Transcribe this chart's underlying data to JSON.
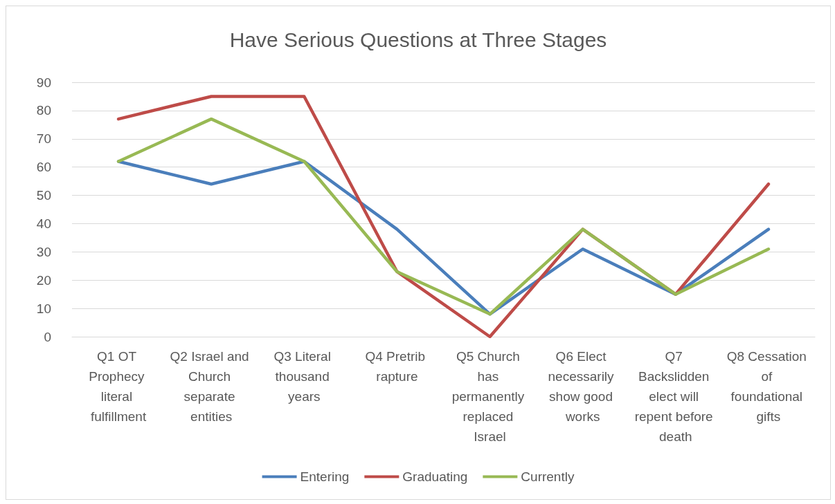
{
  "chart_data": {
    "type": "line",
    "title": "Have Serious Questions at Three Stages",
    "categories": [
      "Q1 OT Prophecy literal fulfillment",
      "Q2 Israel and Church separate entities",
      "Q3 Literal thousand years",
      "Q4 Pretrib rapture",
      "Q5 Church has permanently replaced Israel",
      "Q6 Elect necessarily show good works",
      "Q7 Backslidden elect will repent before death",
      "Q8 Cessation of foundational gifts"
    ],
    "series": [
      {
        "name": "Entering",
        "color": "#4a7ebb",
        "values": [
          62,
          54,
          62,
          38,
          8,
          31,
          15,
          38
        ]
      },
      {
        "name": "Graduating",
        "color": "#be4b48",
        "values": [
          77,
          85,
          85,
          23,
          0,
          38,
          15,
          54
        ]
      },
      {
        "name": "Currently",
        "color": "#98b954",
        "values": [
          62,
          77,
          62,
          23,
          8,
          38,
          15,
          31
        ]
      }
    ],
    "ylim": [
      0,
      90
    ],
    "yticks": [
      0,
      10,
      20,
      30,
      40,
      50,
      60,
      70,
      80,
      90
    ],
    "grid": "y",
    "legend": "bottom",
    "marker": "none",
    "line_style": "solid"
  }
}
